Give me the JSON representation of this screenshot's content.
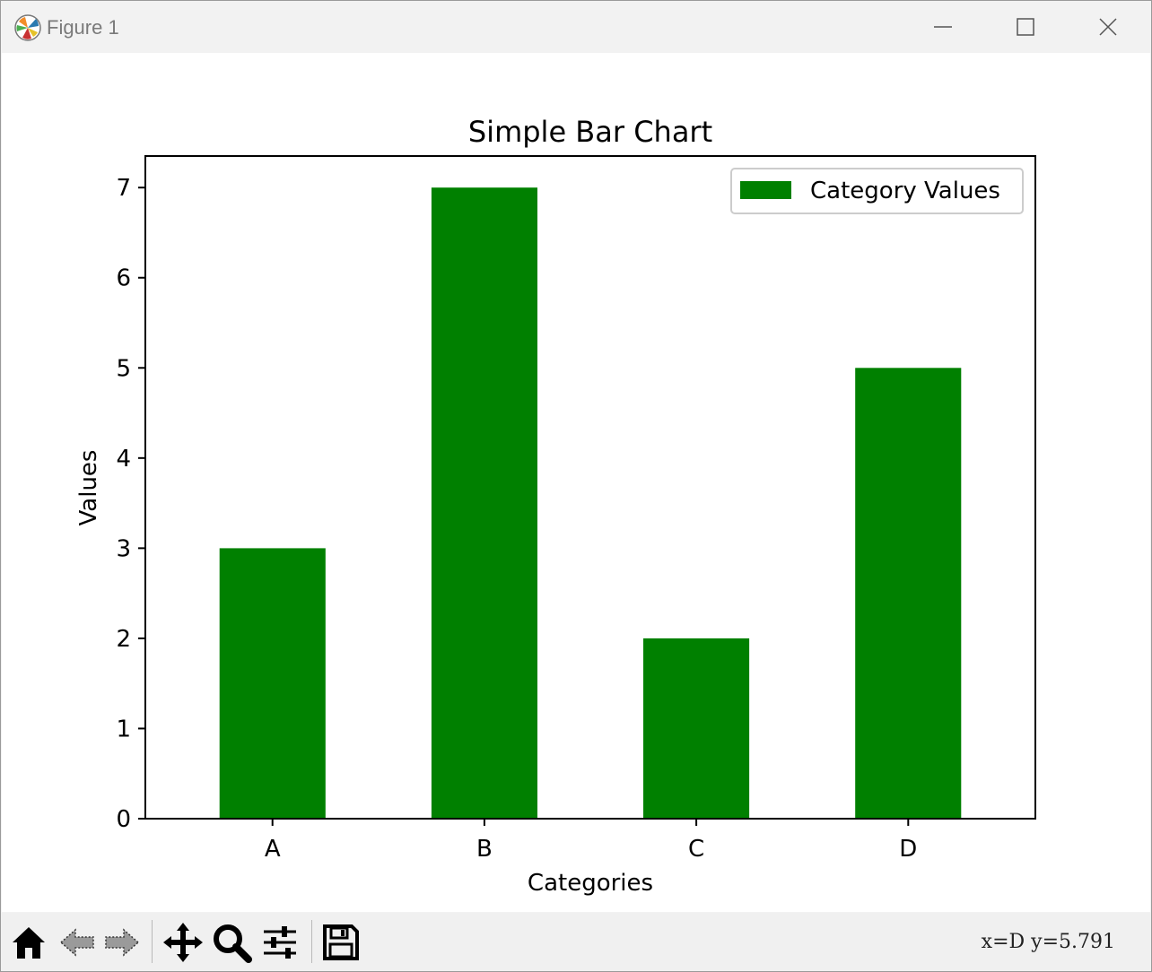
{
  "window": {
    "title": "Figure 1"
  },
  "toolbar": {
    "buttons": [
      {
        "name": "home",
        "icon": "home-icon"
      },
      {
        "name": "back",
        "icon": "back-arrow-icon"
      },
      {
        "name": "forward",
        "icon": "forward-arrow-icon"
      },
      {
        "name": "pan",
        "icon": "move-icon"
      },
      {
        "name": "zoom",
        "icon": "magnifier-icon"
      },
      {
        "name": "configure-subplots",
        "icon": "sliders-icon"
      },
      {
        "name": "save",
        "icon": "floppy-disk-icon"
      }
    ],
    "coords": "x=D y=5.791"
  },
  "chart_data": {
    "type": "bar",
    "title": "Simple Bar Chart",
    "xlabel": "Categories",
    "ylabel": "Values",
    "categories": [
      "A",
      "B",
      "C",
      "D"
    ],
    "series": [
      {
        "name": "Category Values",
        "values": [
          3,
          7,
          2,
          5
        ],
        "color": "#008000"
      }
    ],
    "ylim": [
      0,
      7.35
    ],
    "yticks": [
      0,
      1,
      2,
      3,
      4,
      5,
      6,
      7
    ],
    "grid": false,
    "legend": "top-right"
  }
}
